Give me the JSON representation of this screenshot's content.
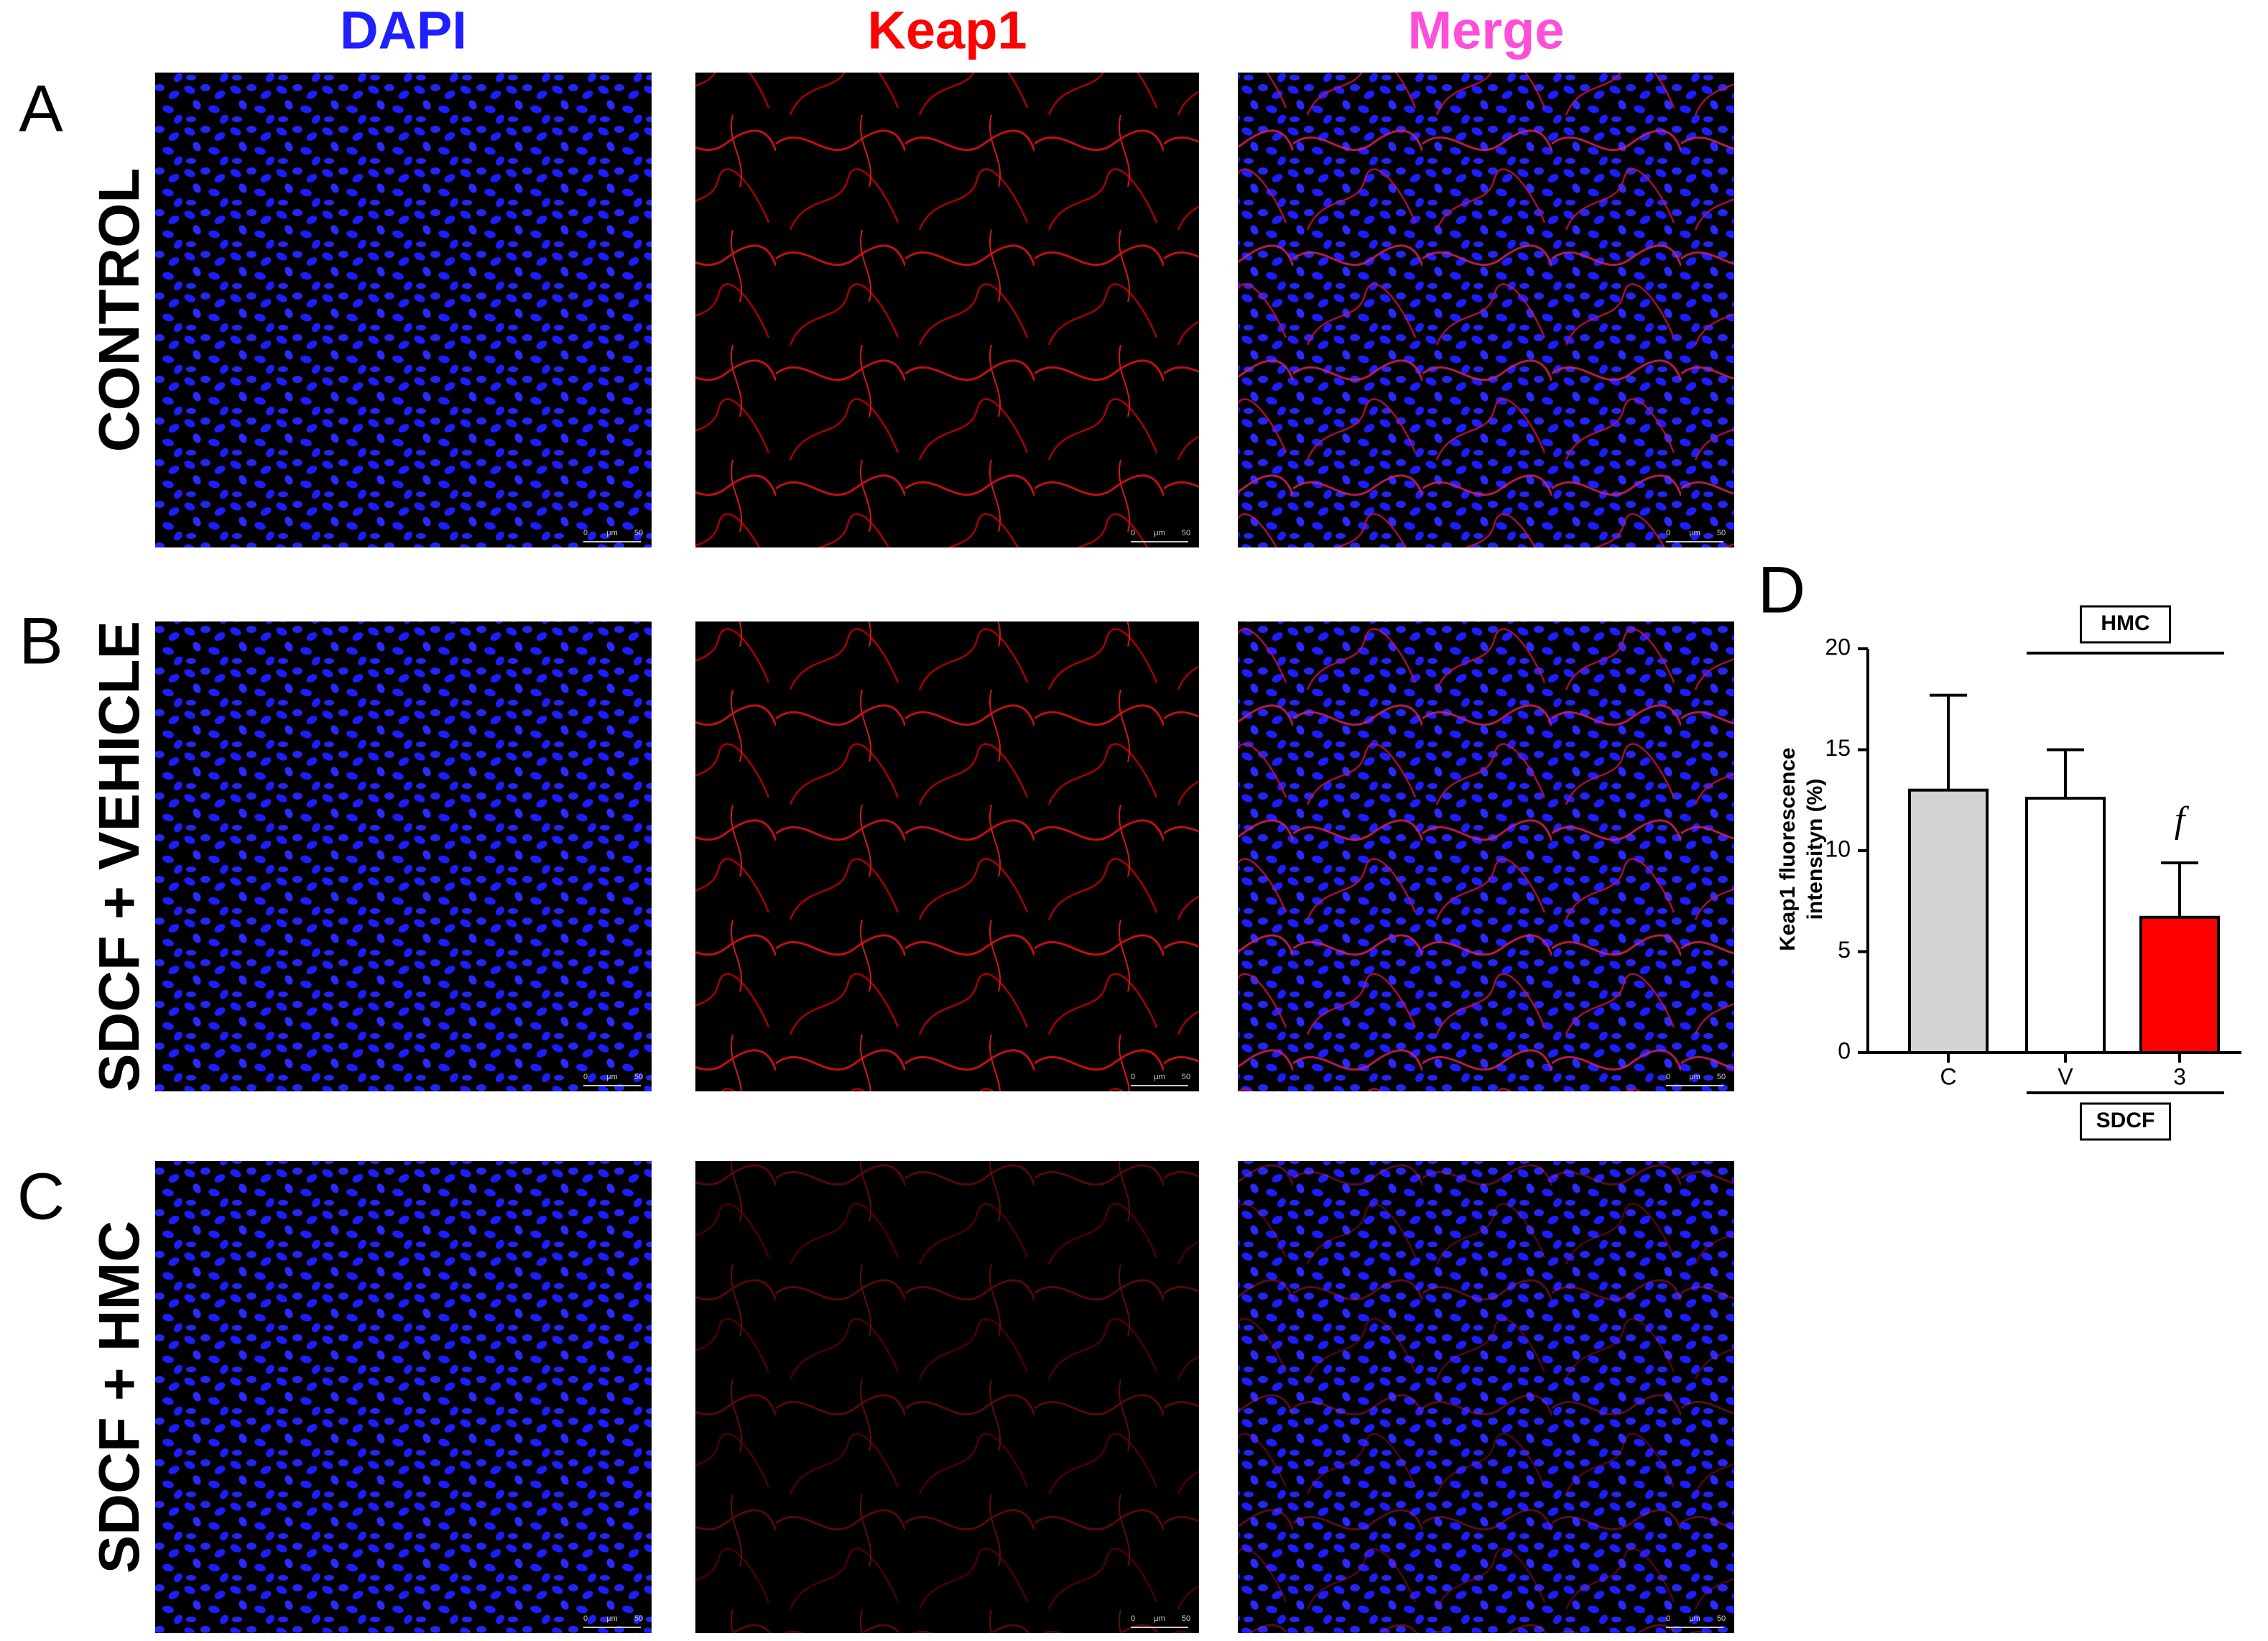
{
  "figure": {
    "column_headers": [
      "DAPI",
      "Keap1",
      "Merge"
    ],
    "header_colors": [
      "#1f1fff",
      "#ff0000",
      "#ff4fd8"
    ],
    "rows": [
      {
        "letter": "A",
        "label": "CONTROL"
      },
      {
        "letter": "B",
        "label": "SDCF + VEHICLE"
      },
      {
        "letter": "C",
        "label": "SDCF + HMC"
      }
    ],
    "scale_bar": [
      "0",
      "μm",
      "50"
    ]
  },
  "chart_data": {
    "type": "bar",
    "panel_letter": "D",
    "y_label": [
      "Keap1 fluorescence",
      "intensityn (%)"
    ],
    "categories": [
      "C",
      "V",
      "3"
    ],
    "values": [
      13,
      12.6,
      6.7
    ],
    "errors": [
      4.7,
      2.4,
      2.7
    ],
    "colors": [
      "#d3d3d3",
      "#ffffff",
      "#ff0000"
    ],
    "ylim": [
      0,
      20
    ],
    "yticks": [
      0,
      5,
      10,
      15,
      20
    ],
    "groups": [
      {
        "label": "HMC",
        "position": "top"
      },
      {
        "label": "SDCF",
        "position": "bottom"
      }
    ],
    "annotation": "f"
  }
}
